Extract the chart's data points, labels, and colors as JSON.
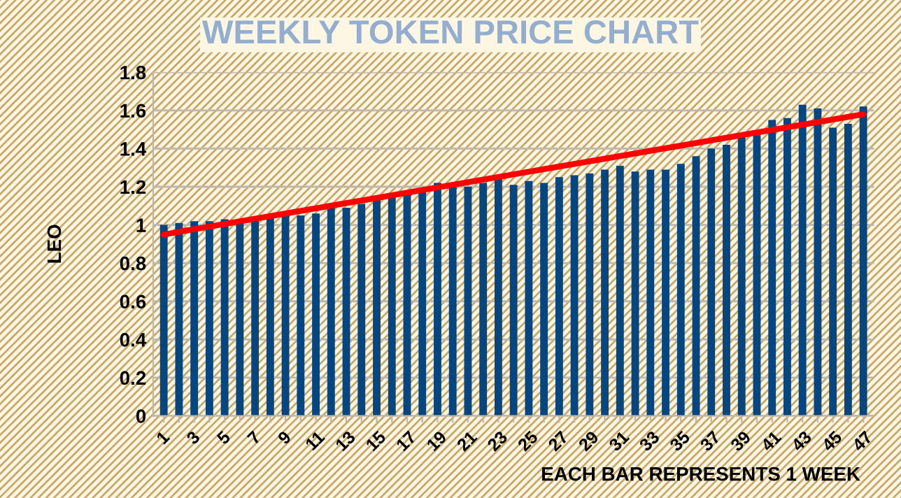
{
  "chart_data": {
    "type": "bar",
    "title": "WEEKLY TOKEN PRICE CHART",
    "xlabel": "EACH BAR REPRESENTS 1 WEEK",
    "ylabel": "LEO",
    "categories": [
      "1",
      null,
      "3",
      null,
      "5",
      null,
      "7",
      null,
      "9",
      null,
      "11",
      null,
      "13",
      null,
      "15",
      null,
      "17",
      null,
      "19",
      null,
      "21",
      null,
      "23",
      null,
      "25",
      null,
      "27",
      null,
      "29",
      null,
      "31",
      null,
      "33",
      null,
      "35",
      null,
      "37",
      null,
      "39",
      null,
      "41",
      null,
      "43",
      null,
      "45",
      null,
      "47"
    ],
    "series": [
      {
        "color": "#034682",
        "values": [
          1.0,
          1.01,
          1.02,
          1.02,
          1.03,
          1.01,
          1.03,
          1.04,
          1.05,
          1.05,
          1.06,
          1.09,
          1.09,
          1.11,
          1.14,
          1.15,
          1.16,
          1.18,
          1.22,
          1.21,
          1.2,
          1.22,
          1.24,
          1.21,
          1.23,
          1.22,
          1.25,
          1.26,
          1.27,
          1.29,
          1.31,
          1.28,
          1.29,
          1.29,
          1.32,
          1.36,
          1.4,
          1.42,
          1.48,
          1.47,
          1.55,
          1.56,
          1.63,
          1.61,
          1.51,
          1.53,
          1.62
        ]
      },
      {
        "type": "line",
        "color": "#ff0000",
        "x": [
          "1",
          "47"
        ],
        "values": [
          0.95,
          1.58
        ]
      }
    ],
    "ylim": [
      0,
      1.8
    ],
    "yticks": [
      0,
      0.2,
      0.4,
      0.6,
      0.8,
      1,
      1.2,
      1.4,
      1.6,
      1.8
    ],
    "grid": "y",
    "legend": false
  }
}
